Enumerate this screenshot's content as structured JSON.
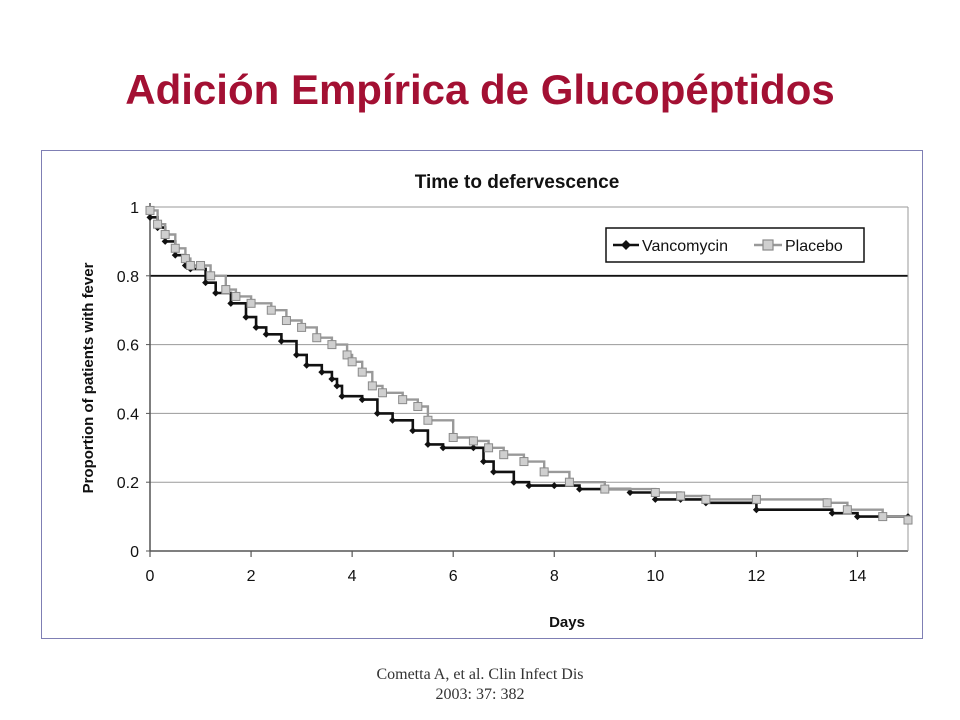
{
  "slide": {
    "title": "Adición Empírica de Glucopéptidos",
    "citation_line1": "Cometta A, et al. Clin Infect Dis",
    "citation_line2": "2003: 37: 382"
  },
  "chart_data": {
    "type": "line",
    "title": "Time to defervescence",
    "xlabel": "Days",
    "ylabel": "Proportion of patients with fever",
    "xlim": [
      0,
      15
    ],
    "ylim": [
      0,
      1
    ],
    "x_ticks": [
      0,
      2,
      4,
      6,
      8,
      10,
      12,
      14
    ],
    "y_ticks": [
      0,
      0.2,
      0.4,
      0.6,
      0.8,
      1
    ],
    "y_tick_labels": [
      "0",
      "0.2",
      "0.4",
      "0.6",
      "0.8",
      "1"
    ],
    "grid": "horizontal",
    "legend_position": "top-right",
    "series": [
      {
        "name": "Vancomycin",
        "color": "#111111",
        "marker": "diamond",
        "x": [
          0,
          0.15,
          0.3,
          0.5,
          0.7,
          0.8,
          1.1,
          1.3,
          1.6,
          1.9,
          2.1,
          2.3,
          2.6,
          2.9,
          3.1,
          3.4,
          3.6,
          3.7,
          3.8,
          4.2,
          4.5,
          4.8,
          5.2,
          5.5,
          5.8,
          6.4,
          6.6,
          6.8,
          7.2,
          7.5,
          8,
          8.5,
          9.5,
          10,
          10.5,
          11,
          12,
          13.5,
          14,
          15
        ],
        "y": [
          0.97,
          0.94,
          0.9,
          0.86,
          0.83,
          0.82,
          0.78,
          0.75,
          0.72,
          0.68,
          0.65,
          0.63,
          0.61,
          0.57,
          0.54,
          0.52,
          0.5,
          0.48,
          0.45,
          0.44,
          0.4,
          0.38,
          0.35,
          0.31,
          0.3,
          0.3,
          0.26,
          0.23,
          0.2,
          0.19,
          0.19,
          0.18,
          0.17,
          0.15,
          0.15,
          0.14,
          0.12,
          0.11,
          0.1,
          0.1
        ]
      },
      {
        "name": "Placebo",
        "color": "#999999",
        "marker": "square",
        "x": [
          0,
          0.15,
          0.3,
          0.5,
          0.7,
          0.8,
          1.0,
          1.2,
          1.5,
          1.7,
          2.0,
          2.4,
          2.7,
          3.0,
          3.3,
          3.6,
          3.9,
          4.0,
          4.2,
          4.4,
          4.6,
          5.0,
          5.3,
          5.5,
          6.0,
          6.4,
          6.7,
          7.0,
          7.4,
          7.8,
          8.3,
          9.0,
          10.0,
          10.5,
          11.0,
          12.0,
          13.4,
          13.8,
          14.5,
          15
        ],
        "y": [
          0.99,
          0.95,
          0.92,
          0.88,
          0.85,
          0.83,
          0.83,
          0.8,
          0.76,
          0.74,
          0.72,
          0.7,
          0.67,
          0.65,
          0.62,
          0.6,
          0.57,
          0.55,
          0.52,
          0.48,
          0.46,
          0.44,
          0.42,
          0.38,
          0.33,
          0.32,
          0.3,
          0.28,
          0.26,
          0.23,
          0.2,
          0.18,
          0.17,
          0.16,
          0.15,
          0.15,
          0.14,
          0.12,
          0.1,
          0.09
        ]
      }
    ]
  }
}
